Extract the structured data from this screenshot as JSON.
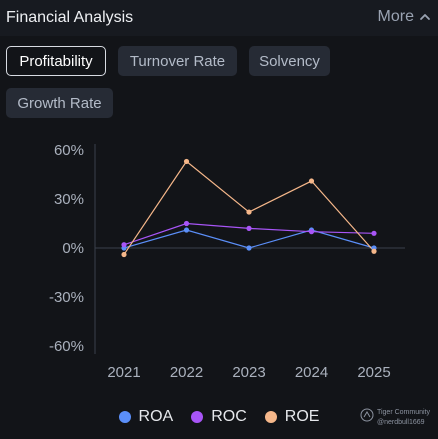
{
  "header": {
    "title": "Financial Analysis",
    "more_label": "More"
  },
  "tabs": [
    {
      "label": "Profitability",
      "active": true
    },
    {
      "label": "Turnover Rate",
      "active": false
    },
    {
      "label": "Solvency",
      "active": false
    },
    {
      "label": "Growth Rate",
      "active": false
    }
  ],
  "chart_data": {
    "type": "line",
    "x": [
      "2021",
      "2022",
      "2023",
      "2024",
      "2025"
    ],
    "y_ticks": [
      "60%",
      "30%",
      "0%",
      "-30%",
      "-60%"
    ],
    "ylim": [
      -60,
      60
    ],
    "series": [
      {
        "name": "ROA",
        "color": "#5b8ff9",
        "values": [
          0,
          11,
          0,
          11,
          0
        ]
      },
      {
        "name": "ROC",
        "color": "#a855f7",
        "values": [
          2,
          15,
          12,
          10,
          9
        ]
      },
      {
        "name": "ROE",
        "color": "#f5b78a",
        "values": [
          -4,
          53,
          22,
          41,
          -2
        ]
      }
    ],
    "legend_position": "bottom"
  },
  "watermark": {
    "brand": "Tiger Community",
    "handle": "@nerdbull1669"
  }
}
